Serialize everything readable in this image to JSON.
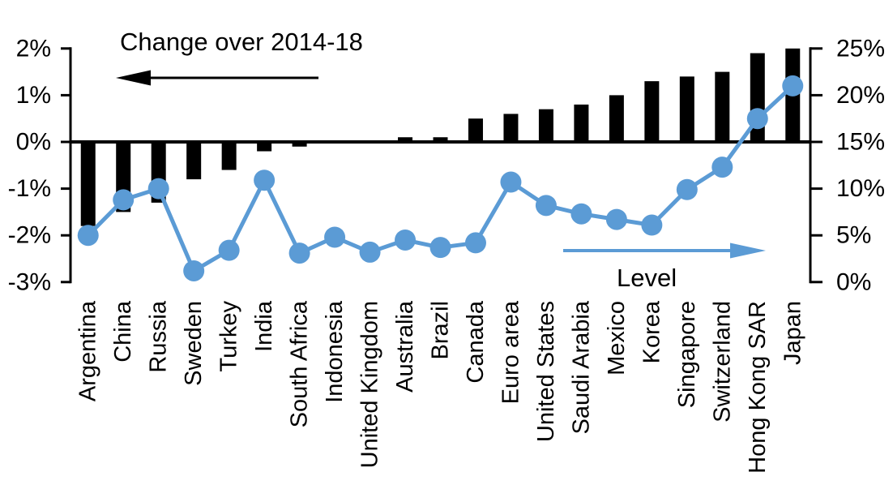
{
  "chart_data": {
    "type": "bar",
    "subtype": "combo_bar_line_dual_axis",
    "title": "",
    "xlabel": "",
    "ylabel": "",
    "grid": false,
    "legend_position": "in-plot-annotations",
    "categories": [
      "Argentina",
      "China",
      "Russia",
      "Sweden",
      "Turkey",
      "India",
      "South Africa",
      "Indonesia",
      "United Kingdom",
      "Australia",
      "Brazil",
      "Canada",
      "Euro area",
      "United States",
      "Saudi Arabia",
      "Mexico",
      "Korea",
      "Singapore",
      "Switzerland",
      "Hong Kong SAR",
      "Japan"
    ],
    "series": [
      {
        "name": "Change over 2014-18",
        "type": "bar",
        "axis": "left",
        "color": "#000000",
        "unit": "%",
        "values": [
          -1.8,
          -1.5,
          -1.3,
          -0.8,
          -0.6,
          -0.2,
          -0.1,
          0.0,
          0.0,
          0.1,
          0.1,
          0.5,
          0.6,
          0.7,
          0.8,
          1.0,
          1.3,
          1.4,
          1.5,
          1.9,
          2.0
        ]
      },
      {
        "name": "Level",
        "type": "line",
        "axis": "right",
        "color": "#5b9bd5",
        "unit": "%",
        "values": [
          5.0,
          8.8,
          10.0,
          1.2,
          3.4,
          10.9,
          3.1,
          4.8,
          3.2,
          4.5,
          3.7,
          4.2,
          10.7,
          8.2,
          7.3,
          6.7,
          6.1,
          9.9,
          12.3,
          17.5,
          21.0
        ]
      }
    ],
    "left_axis": {
      "min": -3,
      "max": 2,
      "step": 1,
      "unit": "%",
      "tick_labels": [
        "2%",
        "1%",
        "0%",
        "-1%",
        "-2%",
        "-3%"
      ],
      "tick_values": [
        2,
        1,
        0,
        -1,
        -2,
        -3
      ]
    },
    "right_axis": {
      "min": 0,
      "max": 25,
      "step": 5,
      "unit": "%",
      "tick_labels": [
        "25%",
        "20%",
        "15%",
        "10%",
        "5%",
        "0%"
      ],
      "tick_values": [
        25,
        20,
        15,
        10,
        5,
        0
      ]
    },
    "annotations": {
      "bar_series_label": "Change over 2014-18",
      "bar_arrow_direction": "left",
      "line_series_label": "Level",
      "line_arrow_direction": "right"
    }
  },
  "colors": {
    "bar": "#000000",
    "line": "#5b9bd5",
    "axis": "#000000",
    "background": "#ffffff",
    "text": "#000000"
  }
}
